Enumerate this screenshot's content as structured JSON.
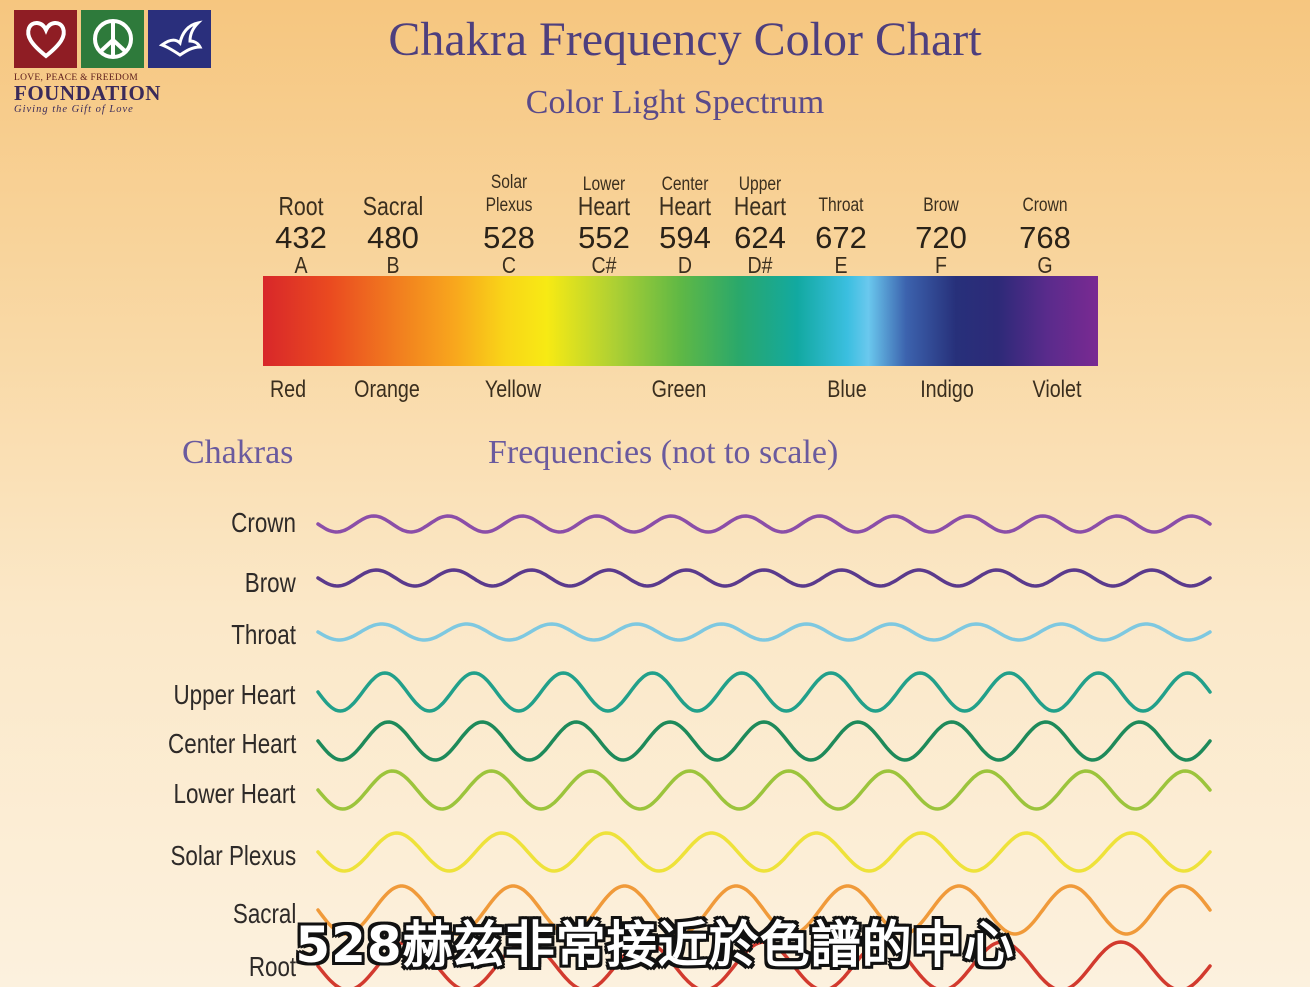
{
  "logo": {
    "line1": "LOVE, PEACE & FREEDOM",
    "line2": "FOUNDATION",
    "line3": "Giving the Gift of Love",
    "colors": [
      "#8f1d24",
      "#2e7a3b",
      "#2a2f7c"
    ],
    "icons": [
      "heart-icon",
      "peace-icon",
      "dove-icon"
    ]
  },
  "title": "Chakra Frequency Color Chart",
  "subtitle": "Color Light Spectrum",
  "notes": [
    {
      "name": "Root",
      "freq": "432",
      "note": "A"
    },
    {
      "name": "Sacral",
      "freq": "480",
      "note": "B"
    },
    {
      "name_top": "Solar",
      "name_bottom": "Plexus",
      "freq": "528",
      "note": "C"
    },
    {
      "name_top": "Lower",
      "name_bottom": "Heart",
      "freq": "552",
      "note": "C#"
    },
    {
      "name_top": "Center",
      "name_bottom": "Heart",
      "freq": "594",
      "note": "D"
    },
    {
      "name_top": "Upper",
      "name_bottom": "Heart",
      "freq": "624",
      "note": "D#"
    },
    {
      "name": "Throat",
      "freq": "672",
      "note": "E"
    },
    {
      "name": "Brow",
      "freq": "720",
      "note": "F"
    },
    {
      "name": "Crown",
      "freq": "768",
      "note": "G"
    }
  ],
  "colors": [
    "Red",
    "Orange",
    "Yellow",
    "Green",
    "Blue",
    "Indigo",
    "Violet"
  ],
  "chakras_heading": "Chakras",
  "frequencies_heading": "Frequencies (not to scale)",
  "waves": [
    {
      "label": "Crown",
      "color": "#8b4ea8",
      "cycles": 12,
      "amplitude": "small"
    },
    {
      "label": "Brow",
      "color": "#5b3a8c",
      "cycles": 11.5,
      "amplitude": "small"
    },
    {
      "label": "Throat",
      "color": "#7ec8e0",
      "cycles": 10.5,
      "amplitude": "small"
    },
    {
      "label": "Upper Heart",
      "color": "#22a08a",
      "cycles": 10,
      "amplitude": "medium"
    },
    {
      "label": "Center Heart",
      "color": "#1e8a5a",
      "cycles": 9.5,
      "amplitude": "medium"
    },
    {
      "label": "Lower Heart",
      "color": "#9cc43c",
      "cycles": 9,
      "amplitude": "medium"
    },
    {
      "label": "Solar Plexus",
      "color": "#eee23a",
      "cycles": 8.5,
      "amplitude": "medium"
    },
    {
      "label": "Sacral",
      "color": "#f09a3a",
      "cycles": 8,
      "amplitude": "large"
    },
    {
      "label": "Root",
      "color": "#d23a2e",
      "cycles": 7.5,
      "amplitude": "large"
    }
  ],
  "caption": "528赫兹非常接近於色譜的中心"
}
